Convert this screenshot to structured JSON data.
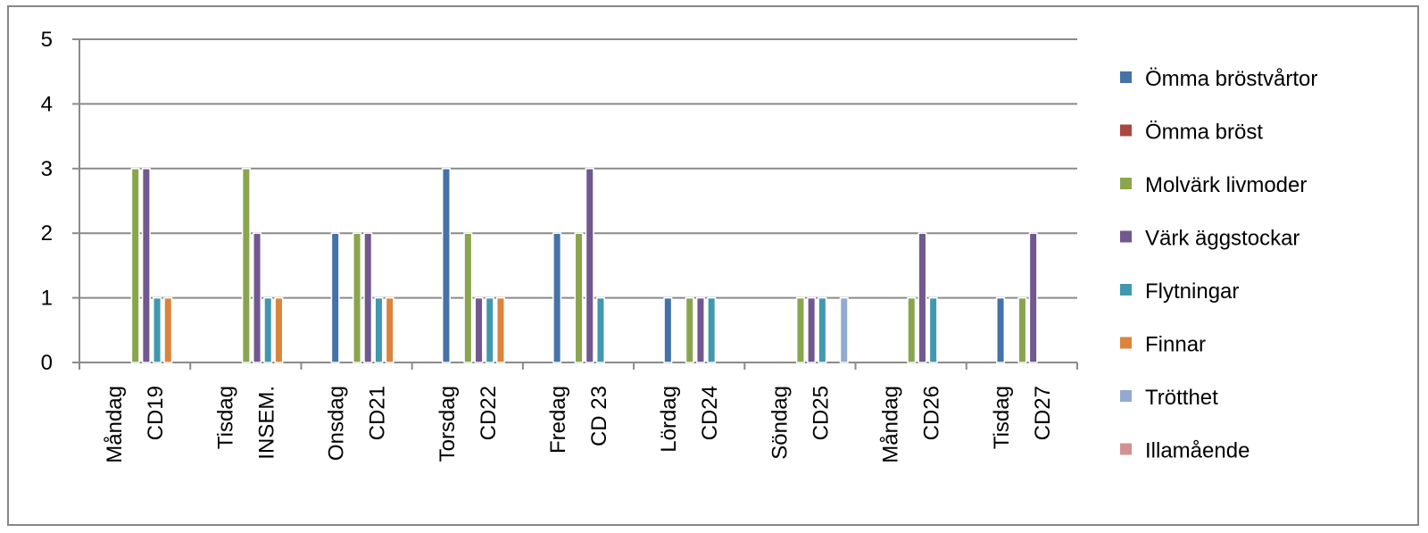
{
  "chart_data": {
    "type": "bar",
    "title": "",
    "xlabel": "",
    "ylabel": "",
    "ylim": [
      0,
      5
    ],
    "yticks": [
      0,
      1,
      2,
      3,
      4,
      5
    ],
    "grid": true,
    "legend_position": "right",
    "categories": [
      [
        "Måndag",
        "CD19"
      ],
      [
        "Tisdag",
        "INSEM."
      ],
      [
        "Onsdag",
        "CD21"
      ],
      [
        "Torsdag",
        "CD22"
      ],
      [
        "Fredag",
        "CD 23"
      ],
      [
        "Lördag",
        "CD24"
      ],
      [
        "Söndag",
        "CD25"
      ],
      [
        "Måndag",
        "CD26"
      ],
      [
        "Tisdag",
        "CD27"
      ]
    ],
    "series": [
      {
        "name": "Ömma bröstvårtor",
        "color": "#4572A7",
        "values": [
          0,
          0,
          2,
          3,
          2,
          1,
          0,
          0,
          1
        ]
      },
      {
        "name": "Ömma bröst",
        "color": "#AA4643",
        "values": [
          0,
          0,
          0,
          0,
          0,
          0,
          0,
          0,
          0
        ]
      },
      {
        "name": "Molvärk livmoder",
        "color": "#89A54E",
        "values": [
          3,
          3,
          2,
          2,
          2,
          1,
          1,
          1,
          1
        ]
      },
      {
        "name": "Värk äggstockar",
        "color": "#71588F",
        "values": [
          3,
          2,
          2,
          1,
          3,
          1,
          1,
          2,
          2
        ]
      },
      {
        "name": "Flytningar",
        "color": "#4198AF",
        "values": [
          1,
          1,
          1,
          1,
          1,
          1,
          1,
          1,
          0
        ]
      },
      {
        "name": "Finnar",
        "color": "#DB843D",
        "values": [
          1,
          1,
          1,
          1,
          0,
          0,
          0,
          0,
          0
        ]
      },
      {
        "name": "Trötthet",
        "color": "#93A9CF",
        "values": [
          0,
          0,
          0,
          0,
          0,
          0,
          1,
          0,
          0
        ]
      },
      {
        "name": "Illamående",
        "color": "#D19392",
        "values": [
          0,
          0,
          0,
          0,
          0,
          0,
          0,
          0,
          0
        ]
      }
    ]
  }
}
